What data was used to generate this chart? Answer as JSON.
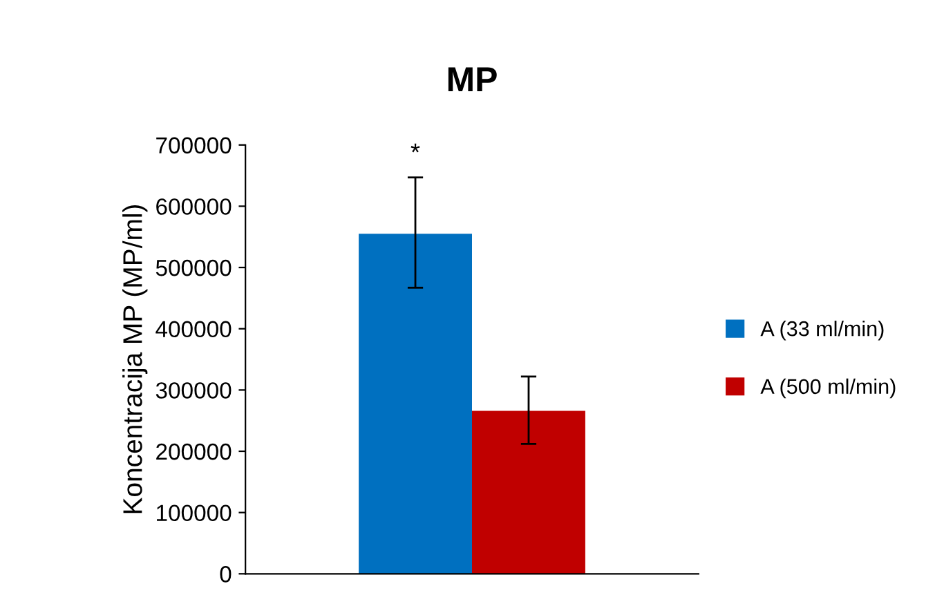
{
  "chart_data": {
    "type": "bar",
    "title": "MP",
    "ylabel": "Koncentracija MP (MP/ml)",
    "categories": [
      null
    ],
    "series": [
      {
        "name": "A (33 ml/min)",
        "color": "#0070c0",
        "values": [
          555000
        ],
        "errors": [
          [
            467000,
            647000
          ]
        ]
      },
      {
        "name": "A (500 ml/min)",
        "color": "#c00000",
        "values": [
          266000
        ],
        "errors": [
          [
            212000,
            322000
          ]
        ]
      }
    ],
    "ylim": [
      0,
      700000
    ],
    "yticks": [
      0,
      100000,
      200000,
      300000,
      400000,
      500000,
      600000,
      700000
    ],
    "annotations": [
      "*"
    ],
    "legend": "right",
    "grid": false
  }
}
